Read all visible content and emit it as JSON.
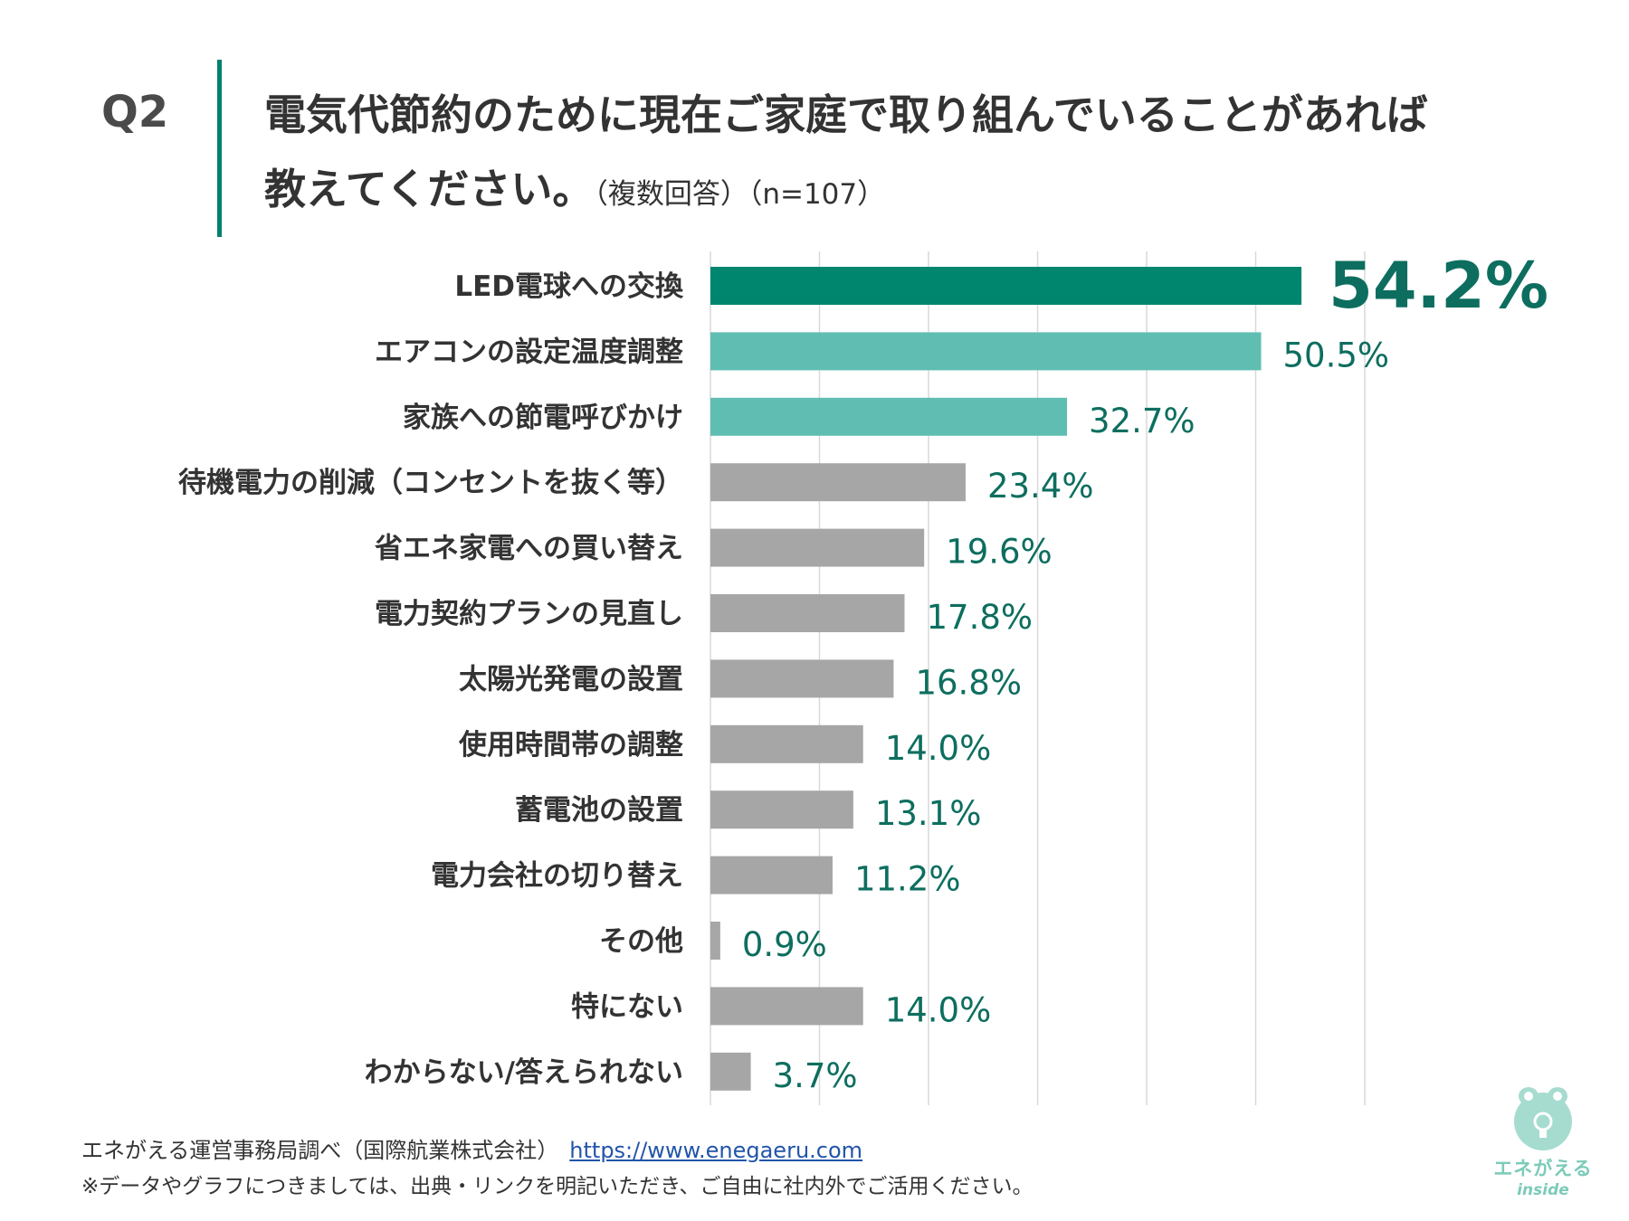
{
  "header": {
    "q_label": "Q2",
    "question_line1": "電気代節約のために現在ご家庭で取り組んでいることがあれば",
    "question_line2": "教えてください。",
    "note": "（複数回答）（n=107）"
  },
  "chart_data": {
    "type": "bar",
    "orientation": "horizontal",
    "categories": [
      "LED電球への交換",
      "エアコンの設定温度調整",
      "家族への節電呼びかけ",
      "待機電力の削減（コンセントを抜く等）",
      "省エネ家電への買い替え",
      "電力契約プランの見直し",
      "太陽光発電の設置",
      "使用時間帯の調整",
      "蓄電池の設置",
      "電力会社の切り替え",
      "その他",
      "特にない",
      "わからない/答えられない"
    ],
    "values": [
      54.2,
      50.5,
      32.7,
      23.4,
      19.6,
      17.8,
      16.8,
      14.0,
      13.1,
      11.2,
      0.9,
      14.0,
      3.7
    ],
    "value_labels": [
      "54.2%",
      "50.5%",
      "32.7%",
      "23.4%",
      "19.6%",
      "17.8%",
      "16.8%",
      "14.0%",
      "13.1%",
      "11.2%",
      "0.9%",
      "14.0%",
      "3.7%"
    ],
    "bar_colors": [
      "#00866f",
      "#5fbeb1",
      "#5fbeb1",
      "#a6a6a6",
      "#a6a6a6",
      "#a6a6a6",
      "#a6a6a6",
      "#a6a6a6",
      "#a6a6a6",
      "#a6a6a6",
      "#a6a6a6",
      "#a6a6a6",
      "#a6a6a6"
    ],
    "label_color": "#0d6e5f",
    "xlim": [
      0,
      60
    ],
    "grid": true,
    "grid_step": 10
  },
  "footer": {
    "source": "エネがえる運営事務局調べ（国際航業株式会社）",
    "url": "https://www.enegaeru.com",
    "note": "※データやグラフにつきましては、出典・リンクを明記いただき、ご自由に社内外でご活用ください。"
  },
  "logo": {
    "brand": "エネがえる",
    "sub": "inside",
    "icon": "frog-lightbulb-icon"
  }
}
